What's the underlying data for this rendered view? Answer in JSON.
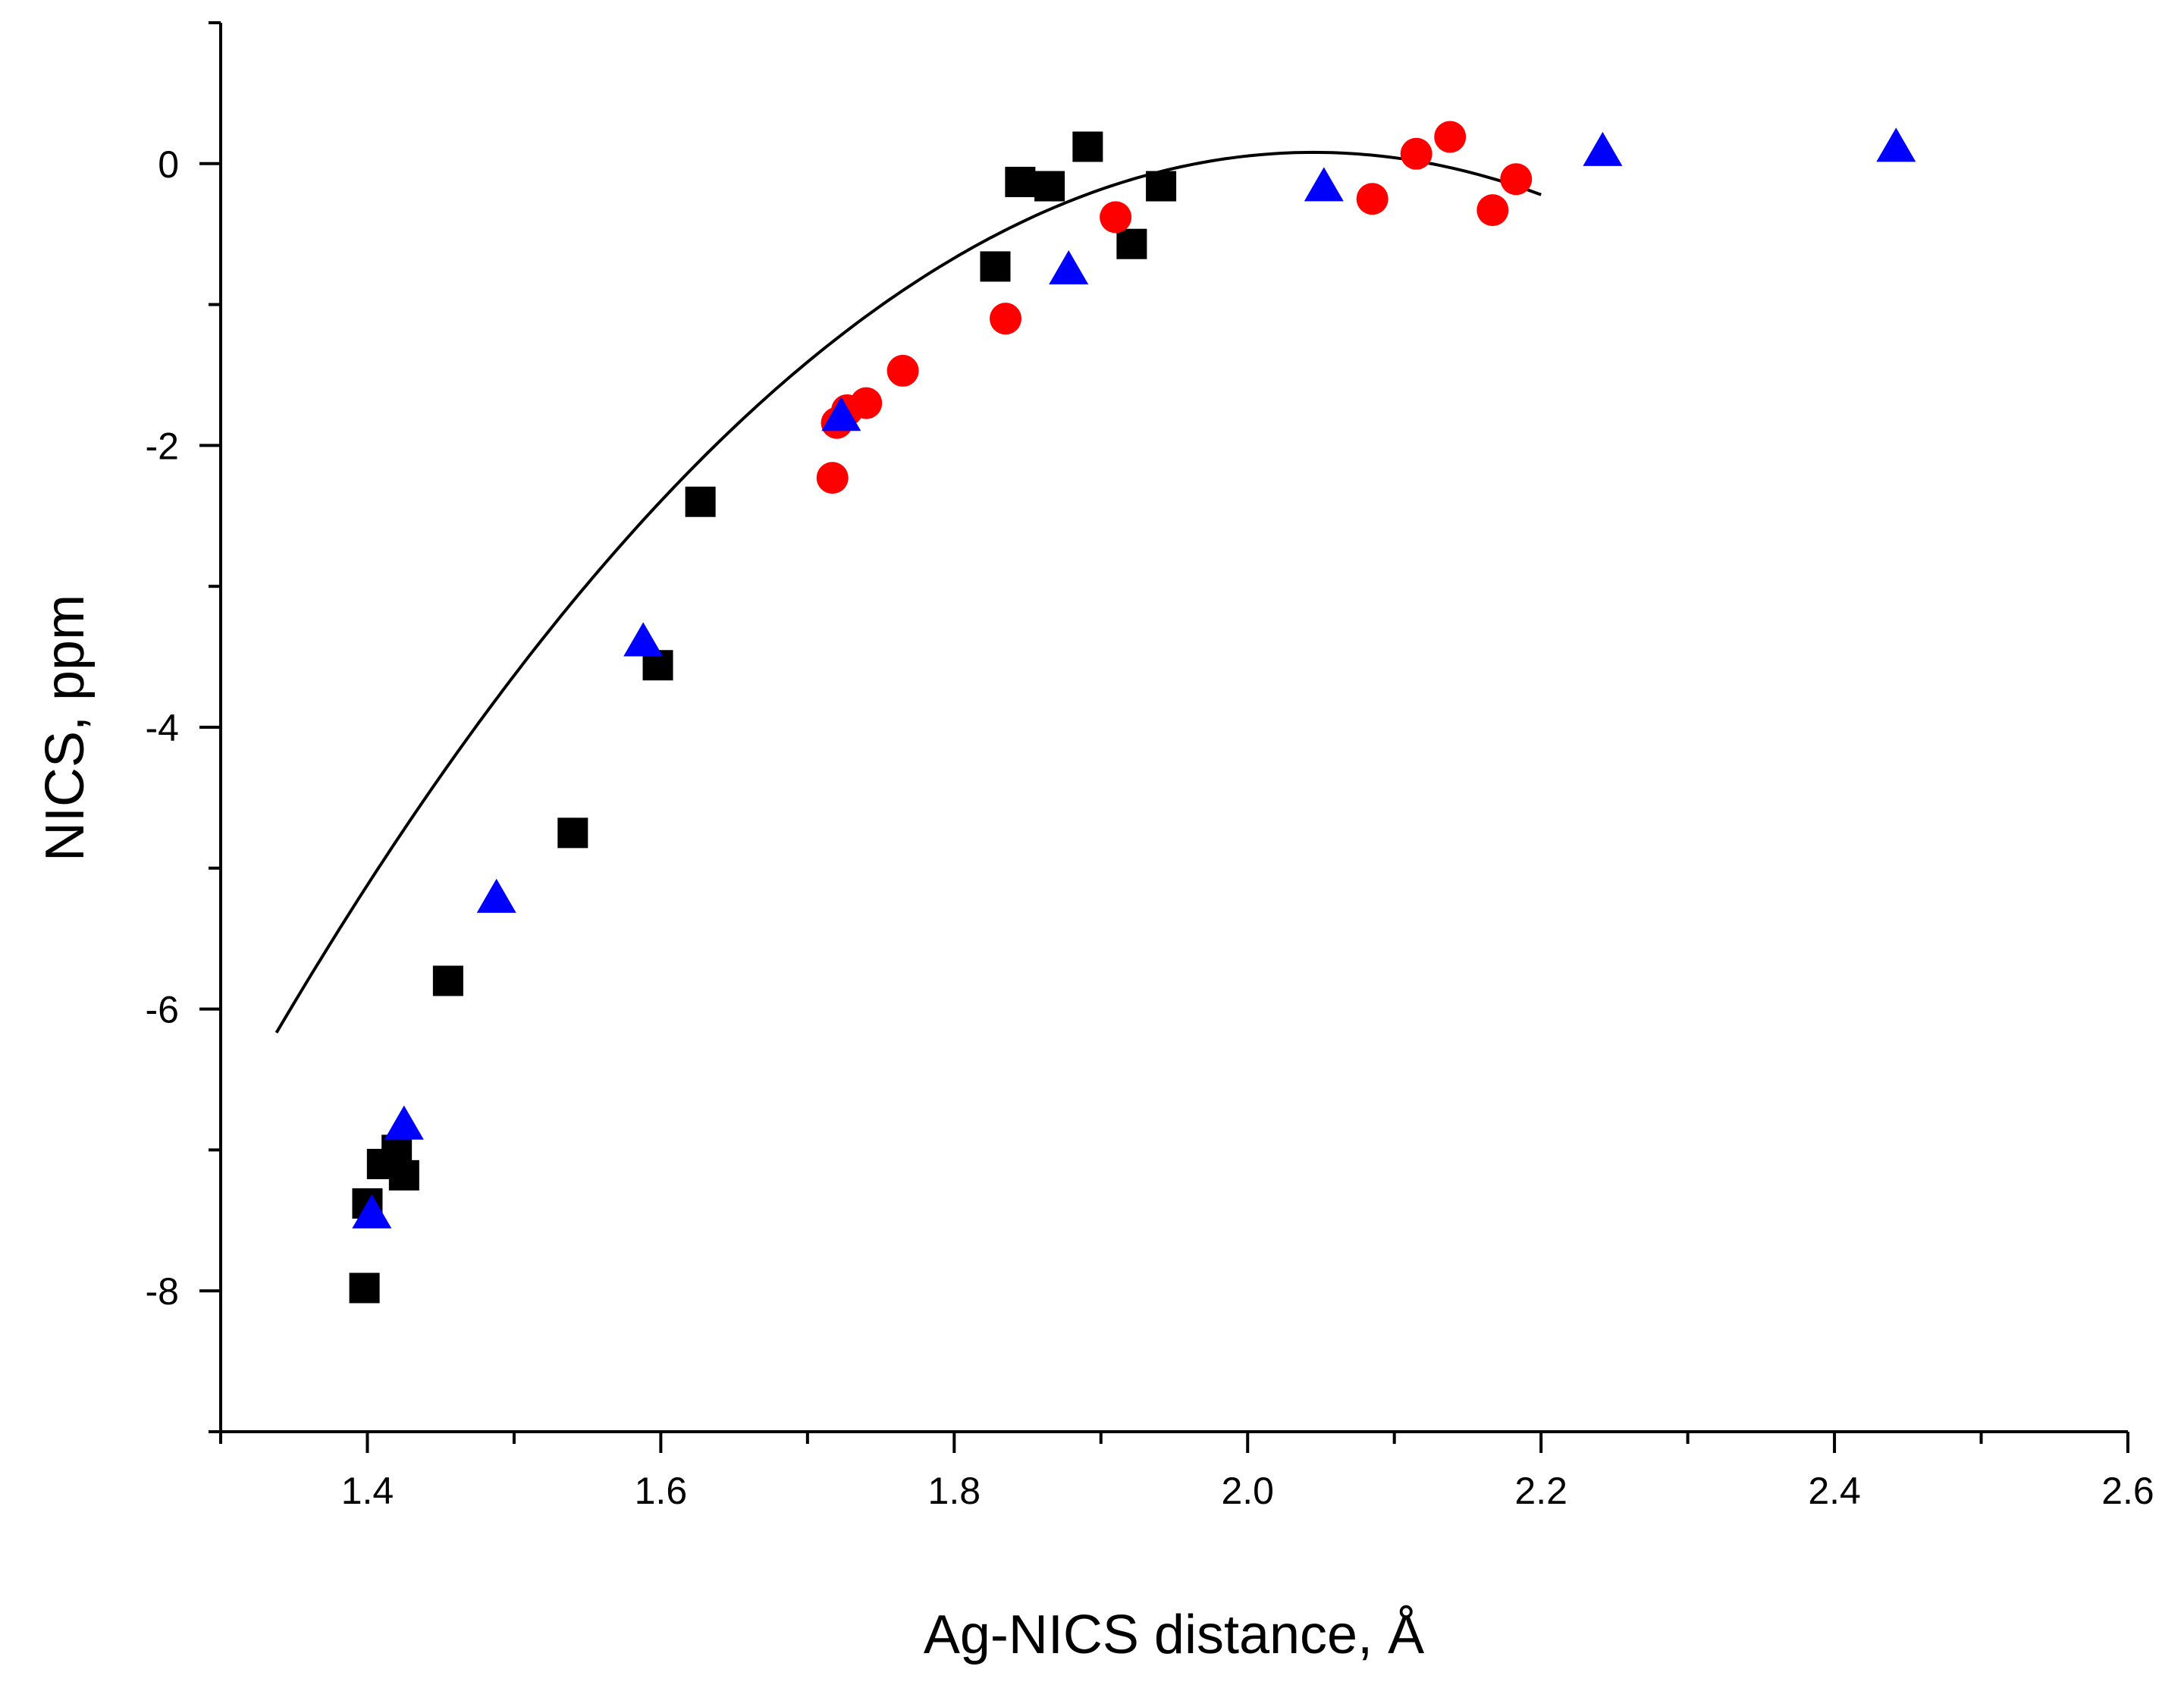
{
  "chart_data": {
    "type": "scatter",
    "title": "",
    "xlabel": "Ag-NICS distance, Å",
    "ylabel": "NICS, ppm",
    "xlim": [
      1.3,
      2.6
    ],
    "ylim": [
      -9,
      1
    ],
    "x_ticks": [
      1.4,
      1.6,
      1.8,
      2.0,
      2.2,
      2.4,
      2.6
    ],
    "x_tick_labels": [
      "1.4",
      "1.6",
      "1.8",
      "2.0",
      "2.2",
      "2.4",
      "2.6"
    ],
    "x_minor_ticks": [
      1.3,
      1.5,
      1.7,
      1.9,
      2.1,
      2.3,
      2.5
    ],
    "y_ticks": [
      -8,
      -6,
      -4,
      -2,
      0
    ],
    "y_tick_labels": [
      "-8",
      "-6",
      "-4",
      "-2",
      "0"
    ],
    "y_minor_ticks": [
      -9,
      -7,
      -5,
      -3,
      -1,
      1
    ],
    "grid": false,
    "series": [
      {
        "name": "squares",
        "marker": "square",
        "color": "#000000",
        "points": [
          [
            1.398,
            -7.98
          ],
          [
            1.4,
            -7.38
          ],
          [
            1.41,
            -7.1
          ],
          [
            1.42,
            -7.0
          ],
          [
            1.425,
            -7.18
          ],
          [
            1.455,
            -5.8
          ],
          [
            1.54,
            -4.75
          ],
          [
            1.598,
            -3.56
          ],
          [
            1.627,
            -2.4
          ],
          [
            1.828,
            -0.73
          ],
          [
            1.845,
            -0.13
          ],
          [
            1.865,
            -0.16
          ],
          [
            1.891,
            0.12
          ],
          [
            1.921,
            -0.57
          ],
          [
            1.941,
            -0.16
          ]
        ]
      },
      {
        "name": "circles",
        "marker": "circle",
        "color": "#ff0000",
        "points": [
          [
            1.717,
            -2.23
          ],
          [
            1.72,
            -1.84
          ],
          [
            1.727,
            -1.75
          ],
          [
            1.74,
            -1.7
          ],
          [
            1.765,
            -1.47
          ],
          [
            1.835,
            -1.1
          ],
          [
            1.91,
            -0.38
          ],
          [
            2.085,
            -0.25
          ],
          [
            2.115,
            0.07
          ],
          [
            2.138,
            0.19
          ],
          [
            2.167,
            -0.33
          ],
          [
            2.183,
            -0.11
          ]
        ]
      },
      {
        "name": "triangles",
        "marker": "triangle",
        "color": "#0000ff",
        "points": [
          [
            1.403,
            -7.46
          ],
          [
            1.425,
            -6.83
          ],
          [
            1.488,
            -5.22
          ],
          [
            1.588,
            -3.4
          ],
          [
            1.723,
            -1.8
          ],
          [
            1.878,
            -0.76
          ],
          [
            2.052,
            -0.17
          ],
          [
            2.242,
            0.08
          ],
          [
            2.442,
            0.11
          ]
        ]
      }
    ],
    "fit": {
      "type": "quadratic",
      "color": "#000000",
      "x_range": [
        1.338,
        2.2
      ],
      "coefficients": {
        "a": -12.5,
        "h": 2.045,
        "k": 0.08
      }
    }
  }
}
